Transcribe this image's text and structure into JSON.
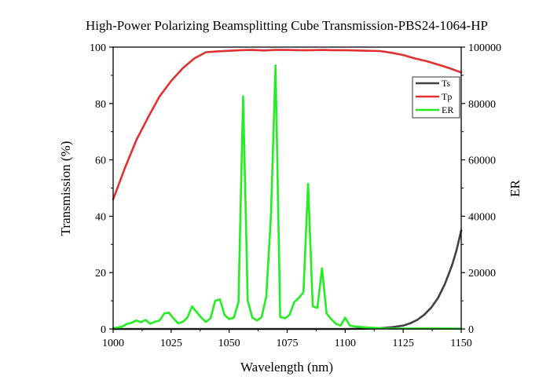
{
  "chart_data": {
    "type": "line",
    "title": "High-Power Polarizing Beamsplitting Cube Transmission-PBS24-1064-HP",
    "xlabel": "Wavelength (nm)",
    "ylabel": "Transmission (%)",
    "y2label": "ER",
    "xlim": [
      1000,
      1150
    ],
    "ylim": [
      0,
      100
    ],
    "y2lim": [
      0,
      100000
    ],
    "xticks": [
      "1000",
      "1025",
      "1050",
      "1075",
      "1100",
      "1125",
      "1150"
    ],
    "yticks": [
      "0",
      "20",
      "40",
      "60",
      "80",
      "100"
    ],
    "y2ticks": [
      "0",
      "20000",
      "40000",
      "60000",
      "80000",
      "100000"
    ],
    "grid": false,
    "legend_position": "top-right",
    "series": [
      {
        "name": "Ts",
        "axis": "left",
        "color": "#404040",
        "x": [
          1000,
          1050,
          1100,
          1110,
          1115,
          1120,
          1125,
          1128,
          1131,
          1134,
          1137,
          1140,
          1143,
          1146,
          1148,
          1150
        ],
        "values": [
          0,
          0,
          0,
          0.1,
          0.3,
          0.6,
          1.2,
          2.0,
          3.2,
          5.0,
          7.5,
          11.0,
          16.0,
          22.5,
          28.0,
          35.0
        ]
      },
      {
        "name": "Tp",
        "axis": "left",
        "color": "#e03030",
        "x": [
          1000,
          1005,
          1010,
          1015,
          1020,
          1025,
          1030,
          1035,
          1040,
          1045,
          1050,
          1055,
          1060,
          1065,
          1070,
          1075,
          1080,
          1085,
          1090,
          1095,
          1100,
          1105,
          1110,
          1115,
          1120,
          1125,
          1130,
          1135,
          1140,
          1145,
          1150
        ],
        "values": [
          46,
          57,
          67,
          75,
          82.5,
          88,
          92.5,
          96,
          98.2,
          98.5,
          98.7,
          98.9,
          99.0,
          98.8,
          99.0,
          99.0,
          98.9,
          98.9,
          99.0,
          98.9,
          98.9,
          98.8,
          98.7,
          98.6,
          98.0,
          97.2,
          96.0,
          95.0,
          93.8,
          92.5,
          91.0
        ]
      },
      {
        "name": "ER",
        "axis": "right",
        "color": "#22ee22",
        "x": [
          1000,
          1002,
          1004,
          1006,
          1008,
          1010,
          1012,
          1014,
          1016,
          1018,
          1020,
          1022,
          1024,
          1026,
          1028,
          1030,
          1032,
          1034,
          1036,
          1038,
          1040,
          1042,
          1044,
          1046,
          1048,
          1050,
          1052,
          1054,
          1056,
          1058,
          1060,
          1062,
          1064,
          1066,
          1068,
          1070,
          1072,
          1074,
          1076,
          1078,
          1080,
          1082,
          1084,
          1086,
          1088,
          1090,
          1092,
          1094,
          1096,
          1098,
          1100,
          1102,
          1105,
          1110,
          1115,
          1120,
          1150
        ],
        "values": [
          300,
          500,
          900,
          1800,
          2200,
          3000,
          2400,
          3200,
          1800,
          2600,
          3000,
          5500,
          5800,
          3800,
          2000,
          2500,
          4000,
          8000,
          6000,
          4000,
          2500,
          3800,
          10000,
          10500,
          5000,
          3500,
          4000,
          9500,
          82500,
          10000,
          4000,
          3000,
          4200,
          11500,
          40000,
          93500,
          4200,
          3800,
          5000,
          9500,
          11000,
          13000,
          51500,
          8000,
          7500,
          21500,
          5500,
          3500,
          1800,
          1200,
          4000,
          1200,
          800,
          500,
          300,
          150,
          100
        ]
      }
    ]
  }
}
